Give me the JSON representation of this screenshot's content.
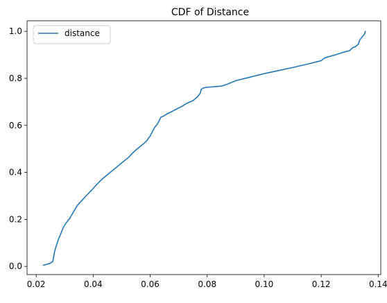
{
  "chart_data": {
    "type": "line",
    "title": "CDF of Distance",
    "xlabel": "",
    "ylabel": "",
    "xlim": [
      0.0168,
      0.1409
    ],
    "ylim": [
      -0.0348,
      1.0448
    ],
    "xticks": [
      0.02,
      0.04,
      0.06,
      0.08,
      0.1,
      0.12,
      0.14
    ],
    "xtick_labels": [
      "0.02",
      "0.04",
      "0.06",
      "0.08",
      "0.10",
      "0.12",
      "0.14"
    ],
    "yticks": [
      0.0,
      0.2,
      0.4,
      0.6,
      0.8,
      1.0
    ],
    "ytick_labels": [
      "0.0",
      "0.2",
      "0.4",
      "0.6",
      "0.8",
      "1.0"
    ],
    "grid": false,
    "legend": {
      "position": "upper-left",
      "entries": [
        "distance"
      ]
    },
    "series": [
      {
        "name": "distance",
        "color": "#1f77b4",
        "x": [
          0.0225,
          0.0235,
          0.0248,
          0.0258,
          0.0262,
          0.0265,
          0.027,
          0.0278,
          0.0285,
          0.0295,
          0.0305,
          0.0318,
          0.033,
          0.0345,
          0.036,
          0.0375,
          0.0395,
          0.041,
          0.043,
          0.0455,
          0.048,
          0.05,
          0.0525,
          0.0545,
          0.0565,
          0.0585,
          0.06,
          0.0615,
          0.0625,
          0.0638,
          0.0648,
          0.0658,
          0.067,
          0.069,
          0.071,
          0.073,
          0.075,
          0.0765,
          0.0775,
          0.078,
          0.079,
          0.08,
          0.085,
          0.087,
          0.09,
          0.095,
          0.1,
          0.105,
          0.11,
          0.115,
          0.12,
          0.121,
          0.1225,
          0.125,
          0.1275,
          0.13,
          0.131,
          0.132,
          0.133,
          0.1335,
          0.1345,
          0.1352,
          0.1355
        ],
        "y": [
          0.005,
          0.008,
          0.013,
          0.02,
          0.045,
          0.065,
          0.085,
          0.115,
          0.135,
          0.165,
          0.185,
          0.205,
          0.23,
          0.26,
          0.28,
          0.3,
          0.325,
          0.345,
          0.37,
          0.395,
          0.42,
          0.44,
          0.465,
          0.49,
          0.51,
          0.53,
          0.555,
          0.59,
          0.605,
          0.635,
          0.64,
          0.648,
          0.655,
          0.668,
          0.68,
          0.695,
          0.705,
          0.72,
          0.735,
          0.755,
          0.76,
          0.762,
          0.767,
          0.775,
          0.79,
          0.805,
          0.82,
          0.833,
          0.846,
          0.86,
          0.875,
          0.885,
          0.892,
          0.9,
          0.91,
          0.918,
          0.93,
          0.935,
          0.945,
          0.963,
          0.978,
          0.988,
          1.0
        ]
      }
    ]
  }
}
